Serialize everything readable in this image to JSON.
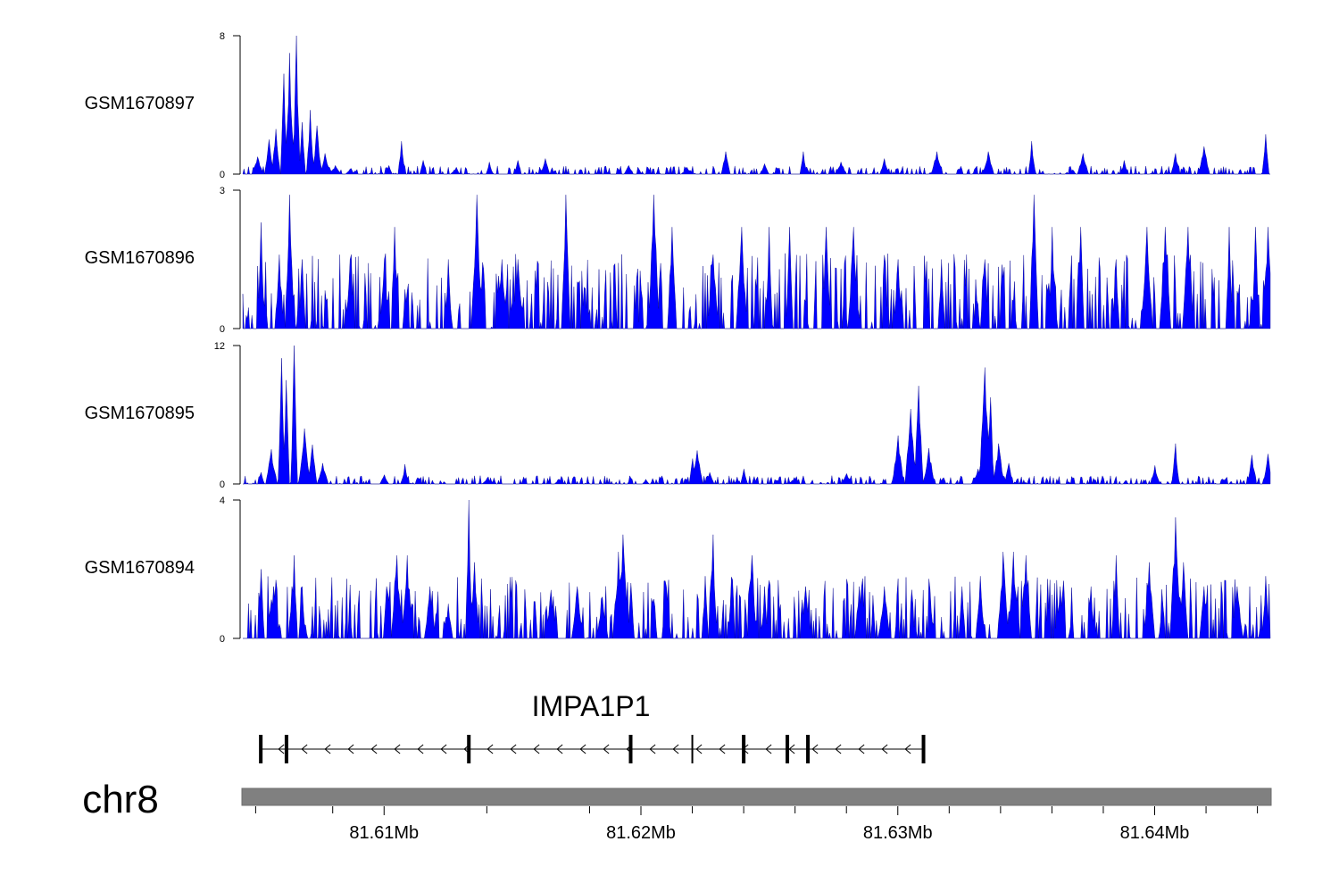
{
  "chart_data": {
    "type": "area",
    "color": "#0000ff",
    "x_range_mb": [
      81.6045,
      81.6445
    ],
    "tracks": [
      {
        "name": "GSM1670897",
        "ylim": [
          0,
          8
        ],
        "y_tick_labels": [
          "0",
          "8"
        ],
        "peaks": [
          {
            "x": 81.6051,
            "y": 1.0
          },
          {
            "x": 81.6055,
            "y": 2.0
          },
          {
            "x": 81.6058,
            "y": 2.6
          },
          {
            "x": 81.6061,
            "y": 5.8
          },
          {
            "x": 81.6063,
            "y": 7.0
          },
          {
            "x": 81.6066,
            "y": 8.0
          },
          {
            "x": 81.6068,
            "y": 3.0
          },
          {
            "x": 81.6071,
            "y": 3.7
          },
          {
            "x": 81.6074,
            "y": 2.8
          },
          {
            "x": 81.6077,
            "y": 1.2
          },
          {
            "x": 81.6081,
            "y": 0.5
          },
          {
            "x": 81.6087,
            "y": 0.3
          },
          {
            "x": 81.6102,
            "y": 0.5
          },
          {
            "x": 81.6107,
            "y": 1.9
          },
          {
            "x": 81.6115,
            "y": 0.8
          },
          {
            "x": 81.6128,
            "y": 0.4
          },
          {
            "x": 81.6141,
            "y": 0.7
          },
          {
            "x": 81.6152,
            "y": 0.8
          },
          {
            "x": 81.6163,
            "y": 0.9
          },
          {
            "x": 81.6195,
            "y": 0.5
          },
          {
            "x": 81.6218,
            "y": 0.4
          },
          {
            "x": 81.6233,
            "y": 1.3
          },
          {
            "x": 81.6248,
            "y": 0.6
          },
          {
            "x": 81.6263,
            "y": 1.3
          },
          {
            "x": 81.6278,
            "y": 0.7
          },
          {
            "x": 81.6295,
            "y": 0.9
          },
          {
            "x": 81.6315,
            "y": 1.3
          },
          {
            "x": 81.6335,
            "y": 1.3
          },
          {
            "x": 81.6352,
            "y": 1.9
          },
          {
            "x": 81.6372,
            "y": 1.2
          },
          {
            "x": 81.6388,
            "y": 0.8
          },
          {
            "x": 81.6408,
            "y": 1.2
          },
          {
            "x": 81.6419,
            "y": 1.6
          },
          {
            "x": 81.6443,
            "y": 2.3
          }
        ]
      },
      {
        "name": "GSM1670896",
        "ylim": [
          0,
          3
        ],
        "y_tick_labels": [
          "0",
          "3"
        ],
        "peaks": [
          {
            "x": 81.6052,
            "y": 2.3
          },
          {
            "x": 81.6059,
            "y": 1.6
          },
          {
            "x": 81.6063,
            "y": 2.9
          },
          {
            "x": 81.6068,
            "y": 1.5
          },
          {
            "x": 81.6087,
            "y": 1.5
          },
          {
            "x": 81.61,
            "y": 1.5
          },
          {
            "x": 81.6104,
            "y": 2.2
          },
          {
            "x": 81.6125,
            "y": 1.5
          },
          {
            "x": 81.6136,
            "y": 2.9
          },
          {
            "x": 81.6146,
            "y": 1.5
          },
          {
            "x": 81.6152,
            "y": 1.5
          },
          {
            "x": 81.6171,
            "y": 2.9
          },
          {
            "x": 81.6205,
            "y": 2.9
          },
          {
            "x": 81.6212,
            "y": 2.2
          },
          {
            "x": 81.6228,
            "y": 1.6
          },
          {
            "x": 81.6239,
            "y": 2.2
          },
          {
            "x": 81.625,
            "y": 2.2
          },
          {
            "x": 81.6258,
            "y": 2.2
          },
          {
            "x": 81.6272,
            "y": 2.2
          },
          {
            "x": 81.6283,
            "y": 2.2
          },
          {
            "x": 81.63,
            "y": 1.5
          },
          {
            "x": 81.6317,
            "y": 1.5
          },
          {
            "x": 81.6334,
            "y": 1.5
          },
          {
            "x": 81.6353,
            "y": 2.9
          },
          {
            "x": 81.636,
            "y": 2.2
          },
          {
            "x": 81.6371,
            "y": 2.2
          },
          {
            "x": 81.6385,
            "y": 1.5
          },
          {
            "x": 81.6397,
            "y": 2.2
          },
          {
            "x": 81.6404,
            "y": 2.2
          },
          {
            "x": 81.6413,
            "y": 2.2
          },
          {
            "x": 81.6429,
            "y": 2.2
          },
          {
            "x": 81.6439,
            "y": 2.2
          },
          {
            "x": 81.6444,
            "y": 2.2
          }
        ]
      },
      {
        "name": "GSM1670895",
        "ylim": [
          0,
          12
        ],
        "y_tick_labels": [
          "0",
          "12"
        ],
        "peaks": [
          {
            "x": 81.6052,
            "y": 1.0
          },
          {
            "x": 81.6056,
            "y": 3.0
          },
          {
            "x": 81.606,
            "y": 10.9
          },
          {
            "x": 81.6062,
            "y": 9.0
          },
          {
            "x": 81.6065,
            "y": 12.0
          },
          {
            "x": 81.6069,
            "y": 4.8
          },
          {
            "x": 81.6072,
            "y": 3.4
          },
          {
            "x": 81.6076,
            "y": 1.8
          },
          {
            "x": 81.61,
            "y": 0.8
          },
          {
            "x": 81.6108,
            "y": 1.7
          },
          {
            "x": 81.614,
            "y": 0.5
          },
          {
            "x": 81.6168,
            "y": 0.4
          },
          {
            "x": 81.6202,
            "y": 0.4
          },
          {
            "x": 81.622,
            "y": 2.2
          },
          {
            "x": 81.6222,
            "y": 2.9
          },
          {
            "x": 81.6227,
            "y": 1.0
          },
          {
            "x": 81.624,
            "y": 1.3
          },
          {
            "x": 81.626,
            "y": 0.4
          },
          {
            "x": 81.628,
            "y": 0.9
          },
          {
            "x": 81.63,
            "y": 4.2
          },
          {
            "x": 81.6305,
            "y": 6.5
          },
          {
            "x": 81.6308,
            "y": 8.5
          },
          {
            "x": 81.6312,
            "y": 3.1
          },
          {
            "x": 81.6331,
            "y": 1.3
          },
          {
            "x": 81.6334,
            "y": 10.1
          },
          {
            "x": 81.6336,
            "y": 7.5
          },
          {
            "x": 81.6339,
            "y": 3.5
          },
          {
            "x": 81.6343,
            "y": 1.8
          },
          {
            "x": 81.64,
            "y": 1.6
          },
          {
            "x": 81.6408,
            "y": 3.5
          },
          {
            "x": 81.6438,
            "y": 2.5
          },
          {
            "x": 81.6444,
            "y": 2.6
          }
        ]
      },
      {
        "name": "GSM1670894",
        "ylim": [
          0,
          4
        ],
        "y_tick_labels": [
          "0",
          "4"
        ],
        "peaks": [
          {
            "x": 81.6052,
            "y": 2.0
          },
          {
            "x": 81.6057,
            "y": 1.5
          },
          {
            "x": 81.6064,
            "y": 1.5
          },
          {
            "x": 81.6065,
            "y": 2.4
          },
          {
            "x": 81.6068,
            "y": 1.5
          },
          {
            "x": 81.6101,
            "y": 1.5
          },
          {
            "x": 81.6105,
            "y": 2.4
          },
          {
            "x": 81.6109,
            "y": 2.4
          },
          {
            "x": 81.6118,
            "y": 1.5
          },
          {
            "x": 81.6125,
            "y": 1.0
          },
          {
            "x": 81.6133,
            "y": 4.0
          },
          {
            "x": 81.6135,
            "y": 2.2
          },
          {
            "x": 81.6165,
            "y": 1.4
          },
          {
            "x": 81.6175,
            "y": 1.5
          },
          {
            "x": 81.6185,
            "y": 1.2
          },
          {
            "x": 81.6191,
            "y": 2.5
          },
          {
            "x": 81.6193,
            "y": 3.0
          },
          {
            "x": 81.6196,
            "y": 1.6
          },
          {
            "x": 81.621,
            "y": 1.5
          },
          {
            "x": 81.6225,
            "y": 1.8
          },
          {
            "x": 81.6228,
            "y": 3.0
          },
          {
            "x": 81.6235,
            "y": 1.5
          },
          {
            "x": 81.6243,
            "y": 2.4
          },
          {
            "x": 81.6248,
            "y": 1.5
          },
          {
            "x": 81.6264,
            "y": 1.5
          },
          {
            "x": 81.6285,
            "y": 1.5
          },
          {
            "x": 81.6295,
            "y": 1.5
          },
          {
            "x": 81.6313,
            "y": 0.8
          },
          {
            "x": 81.6325,
            "y": 1.5
          },
          {
            "x": 81.6332,
            "y": 1.8
          },
          {
            "x": 81.6341,
            "y": 2.5
          },
          {
            "x": 81.6345,
            "y": 2.5
          },
          {
            "x": 81.635,
            "y": 2.4
          },
          {
            "x": 81.6363,
            "y": 1.5
          },
          {
            "x": 81.6375,
            "y": 1.5
          },
          {
            "x": 81.6385,
            "y": 2.4
          },
          {
            "x": 81.6398,
            "y": 2.2
          },
          {
            "x": 81.6408,
            "y": 3.5
          },
          {
            "x": 81.6411,
            "y": 2.2
          },
          {
            "x": 81.6419,
            "y": 1.5
          },
          {
            "x": 81.6432,
            "y": 1.5
          },
          {
            "x": 81.6443,
            "y": 1.8
          }
        ]
      }
    ],
    "gene": {
      "name": "IMPA1P1",
      "start_mb": 81.6052,
      "end_mb": 81.631,
      "strand": "-",
      "exons_mb": [
        81.6052,
        81.6062,
        81.6133,
        81.6196,
        81.622,
        81.624,
        81.6257,
        81.6265,
        81.631
      ]
    },
    "chromosome": "chr8",
    "x_tick_labels": [
      {
        "value": 81.61,
        "label": "81.61Mb"
      },
      {
        "value": 81.62,
        "label": "81.62Mb"
      },
      {
        "value": 81.63,
        "label": "81.63Mb"
      },
      {
        "value": 81.64,
        "label": "81.64Mb"
      }
    ],
    "x_minor_ticks": [
      81.605,
      81.608,
      81.614,
      81.618,
      81.622,
      81.624,
      81.626,
      81.628,
      81.632,
      81.634,
      81.636,
      81.638,
      81.642,
      81.644
    ]
  }
}
